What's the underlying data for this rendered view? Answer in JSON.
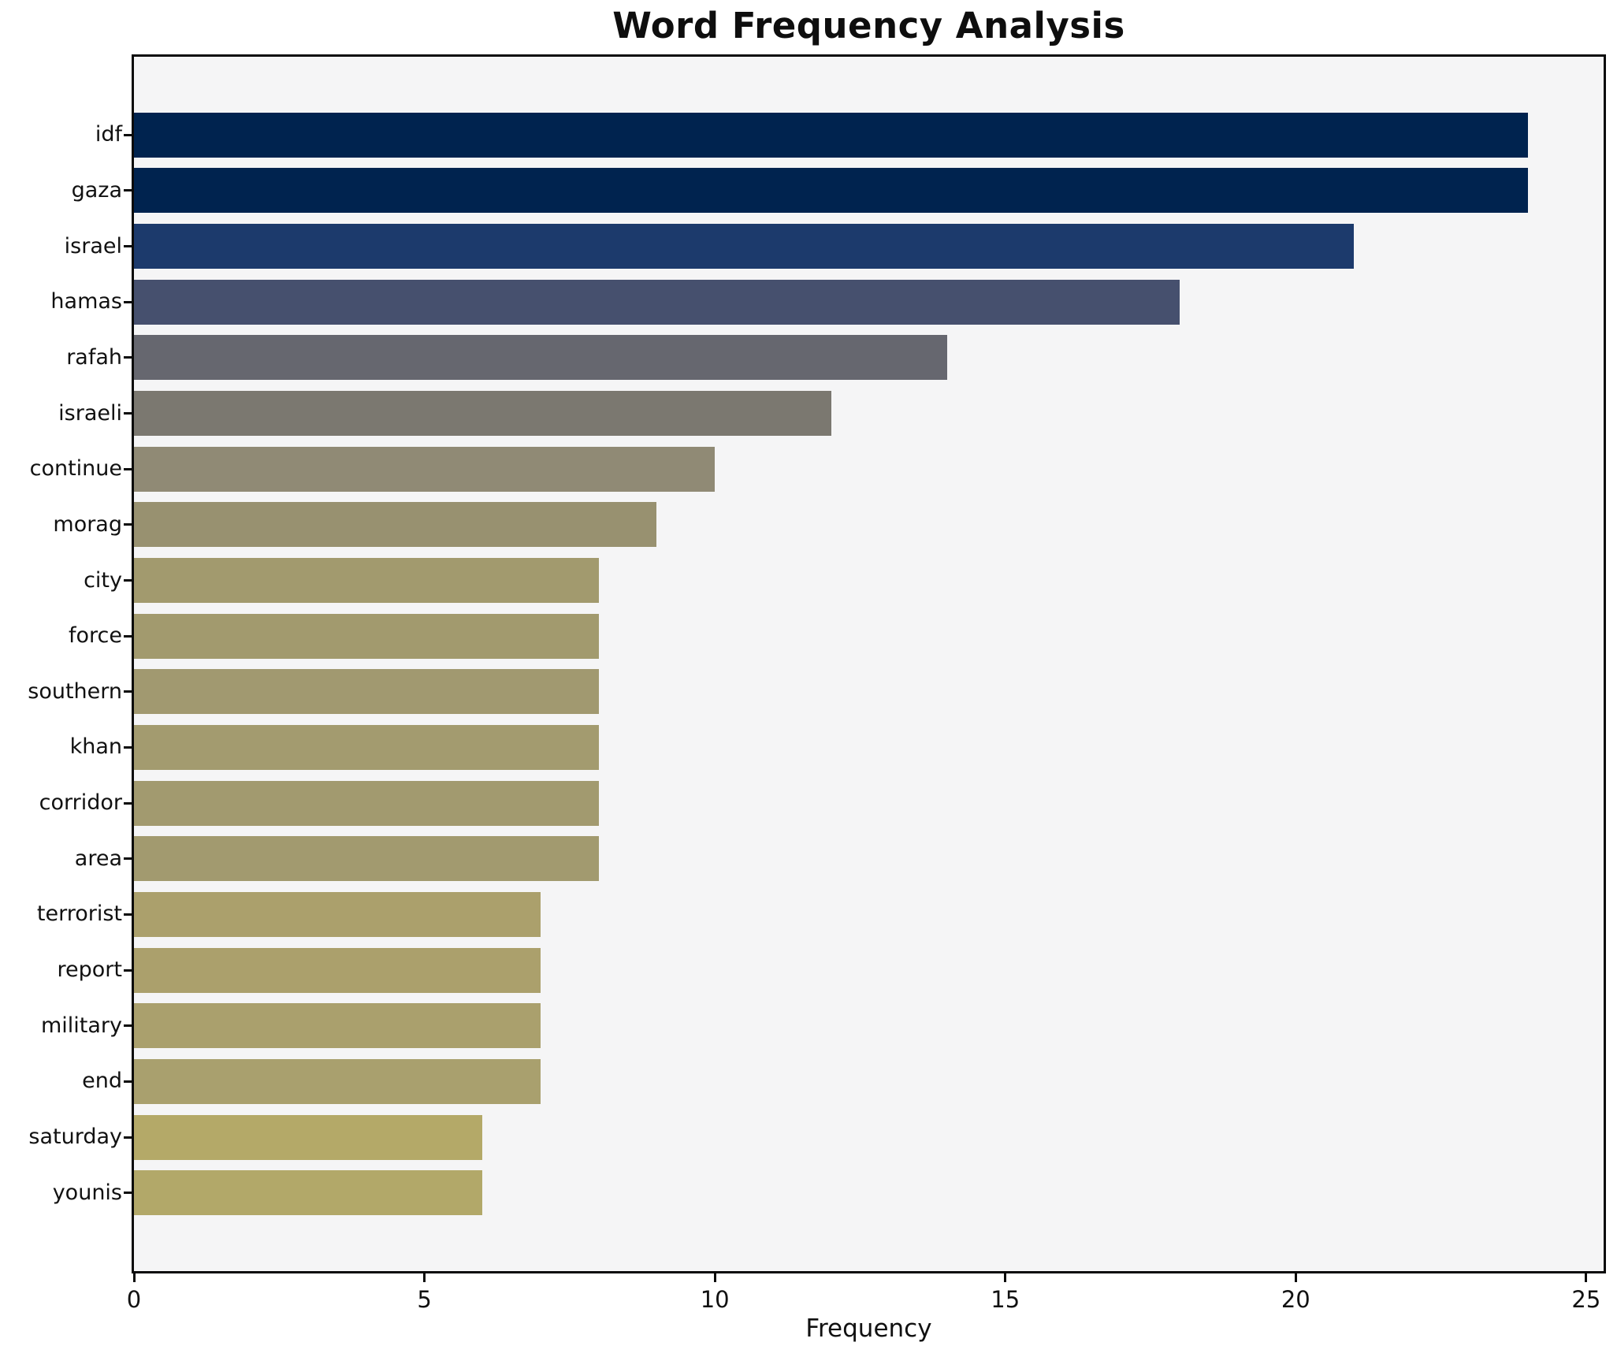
{
  "figure": {
    "background": "#ffffff"
  },
  "chart_data": {
    "type": "bar",
    "orientation": "horizontal",
    "title": "Word Frequency Analysis",
    "xlabel": "Frequency",
    "ylabel": "",
    "categories": [
      "idf",
      "gaza",
      "israel",
      "hamas",
      "rafah",
      "israeli",
      "continue",
      "morag",
      "city",
      "force",
      "southern",
      "khan",
      "corridor",
      "area",
      "terrorist",
      "report",
      "military",
      "end",
      "saturday",
      "younis"
    ],
    "values": [
      24,
      24,
      21,
      18,
      14,
      12,
      10,
      9,
      8,
      8,
      8,
      8,
      8,
      8,
      7,
      7,
      7,
      7,
      6,
      6
    ],
    "bar_colors": [
      "#00234f",
      "#00234f",
      "#1c3a6c",
      "#46506e",
      "#66676f",
      "#7b7870",
      "#908a75",
      "#989170",
      "#a29a6e",
      "#a29a6e",
      "#a19970",
      "#a39b6f",
      "#a29a6f",
      "#a29a6f",
      "#aba06c",
      "#aba06c",
      "#aaa06d",
      "#a9a06e",
      "#b4a968",
      "#b2a869"
    ],
    "x_tick_labels": [
      "0",
      "5",
      "10",
      "15",
      "20",
      "25"
    ],
    "x_tick_values": [
      0,
      5,
      10,
      15,
      20,
      25
    ],
    "xlim": [
      0,
      25.3
    ],
    "grid": "off",
    "legend": "none",
    "plot_background": "#f5f5f6",
    "spine_color": "#0a0a0a",
    "text_color": "#111111"
  }
}
